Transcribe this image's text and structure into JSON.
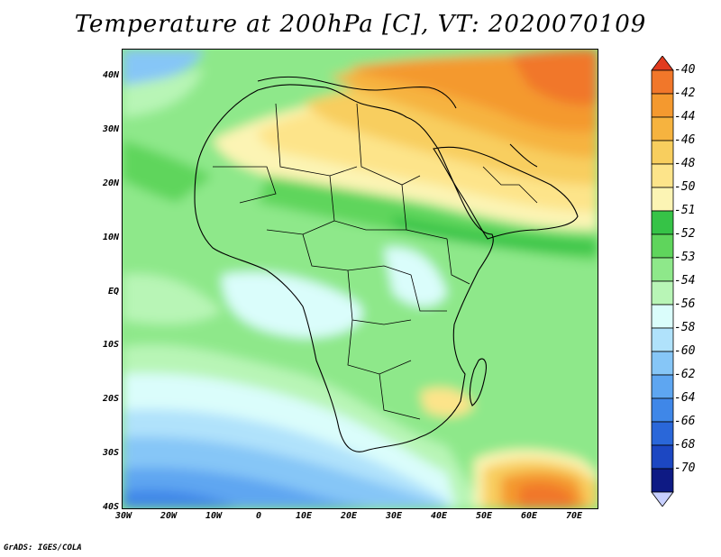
{
  "title": "Temperature at 200hPa [C], VT: 2020070109",
  "credit": "GrADS: IGES/COLA",
  "lat_ticks": [
    "40N",
    "30N",
    "20N",
    "10N",
    "EQ",
    "10S",
    "20S",
    "30S",
    "40S"
  ],
  "lon_ticks": [
    "30W",
    "20W",
    "10W",
    "0",
    "10E",
    "20E",
    "30E",
    "40E",
    "50E",
    "60E",
    "70E"
  ],
  "colorbar": {
    "levels": [
      "-40",
      "-42",
      "-44",
      "-46",
      "-48",
      "-50",
      "-51",
      "-52",
      "-53",
      "-54",
      "-56",
      "-58",
      "-60",
      "-62",
      "-64",
      "-66",
      "-68",
      "-70"
    ],
    "colors": [
      "#e13b1f",
      "#f1772a",
      "#f4992f",
      "#f6b33f",
      "#f8ce5e",
      "#fde48a",
      "#fcf4b4",
      "#36c347",
      "#5fd55c",
      "#8ee88a",
      "#b8f5b6",
      "#dafdfb",
      "#b0e2fb",
      "#86c6f7",
      "#5ea6f1",
      "#3f87e8",
      "#2a67d9",
      "#1c47c2",
      "#0e1a84",
      "#c8d0ff"
    ]
  },
  "map": {
    "projection": "lat-lon",
    "lon_range": [
      -30,
      75
    ],
    "lat_range": [
      -40,
      45
    ],
    "colors": {
      "very_warm": "#e13b1f",
      "warm": "#f1772a",
      "orange": "#f4992f",
      "light_orange": "#f6b33f",
      "pale_orange": "#f8ce5e",
      "yellow": "#fde48a",
      "pale_yellow": "#fcf4b4",
      "green": "#36c347",
      "mid_green": "#5fd55c",
      "light_green": "#8ee88a",
      "pale_green": "#b8f5b6",
      "pale_cyan": "#dafdfb",
      "light_blue": "#b0e2fb",
      "blue": "#86c6f7",
      "mid_blue": "#5ea6f1",
      "dark_blue": "#3f87e8"
    }
  }
}
